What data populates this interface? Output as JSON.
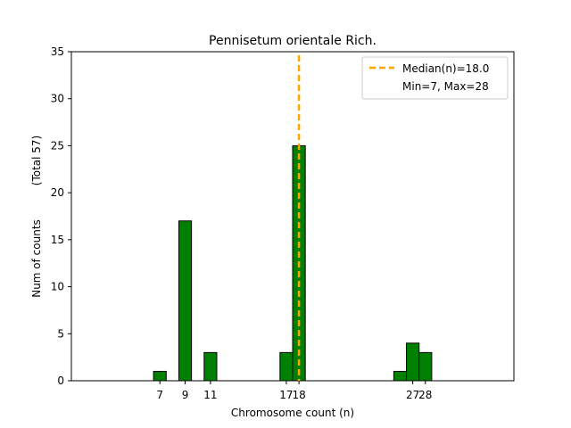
{
  "chart_data": {
    "type": "bar",
    "title": "Pennisetum orientale Rich.",
    "xlabel": "Chromosome count (n)",
    "ylabel": "Num of counts",
    "ylabel_total": "(Total 57)",
    "x": [
      7,
      9,
      11,
      17,
      18,
      27,
      28
    ],
    "values": [
      1,
      17,
      3,
      3,
      25,
      4,
      3
    ],
    "extra_bars": [
      {
        "x": 26,
        "value": 1
      }
    ],
    "xticks": [
      7,
      9,
      11,
      17,
      18,
      27,
      28
    ],
    "xtick_labels": [
      "7",
      "9",
      "11",
      "17",
      "18",
      "27",
      "28"
    ],
    "xlim": [
      0,
      35
    ],
    "ylim": [
      0,
      35
    ],
    "yticks": [
      0,
      5,
      10,
      15,
      20,
      25,
      30,
      35
    ],
    "ytick_labels": [
      "0",
      "5",
      "10",
      "15",
      "20",
      "25",
      "30",
      "35"
    ],
    "median": 18.0,
    "legend": {
      "position": "top-right",
      "median_label": "Median(n)=18.0",
      "minmax_label": "Min=7, Max=28"
    },
    "colors": {
      "bar_fill": "#008000",
      "bar_edge": "#000000",
      "median_line": "#FFA500",
      "axes": "#000000"
    }
  }
}
